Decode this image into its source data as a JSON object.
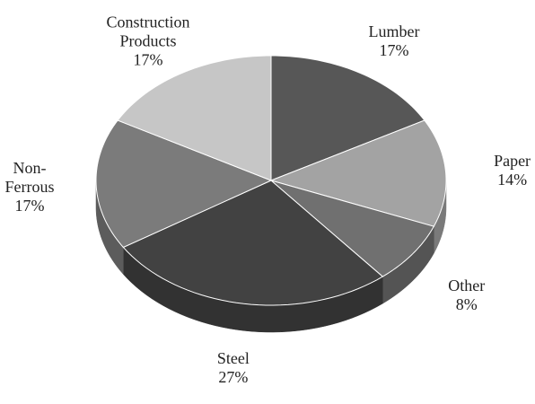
{
  "chart_data": {
    "type": "pie",
    "three_d": true,
    "categories": [
      "Lumber",
      "Paper",
      "Other",
      "Steel",
      "Non-Ferrous",
      "Construction Products"
    ],
    "values": [
      17,
      14,
      8,
      27,
      17,
      17
    ],
    "value_labels": [
      "17%",
      "14%",
      "8%",
      "27%",
      "17%",
      "17%"
    ],
    "colors": [
      "#575757",
      "#a3a3a3",
      "#707070",
      "#424242",
      "#7b7b7b",
      "#c6c6c6"
    ]
  }
}
